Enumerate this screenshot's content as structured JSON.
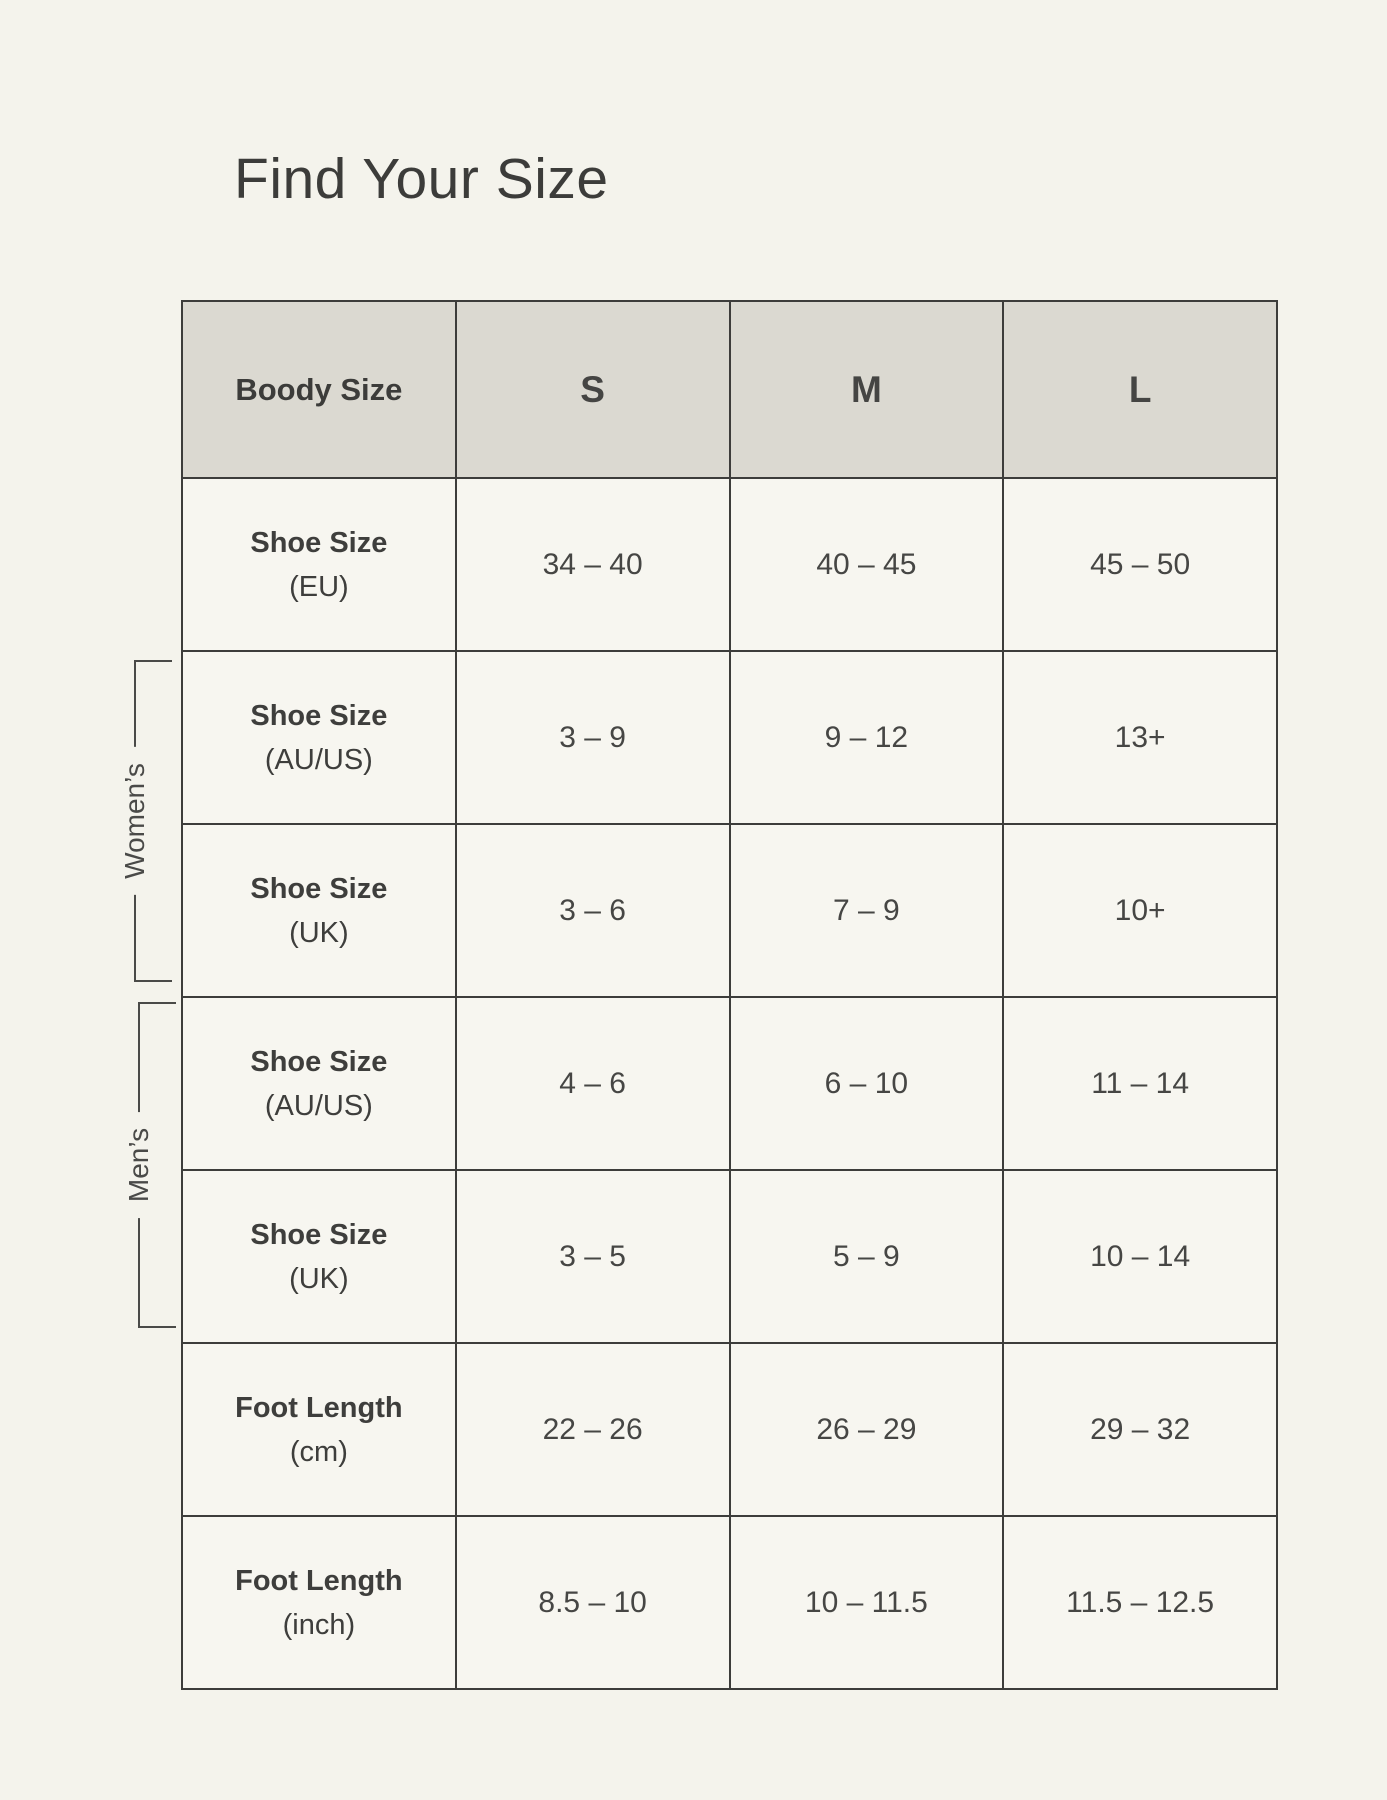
{
  "page": {
    "title": "Find Your Size"
  },
  "colors": {
    "page_background": "#f4f3ec",
    "header_background": "#dbd9d1",
    "cell_background": "#f7f6f0",
    "border": "#3d3d3b",
    "text": "#434341"
  },
  "side_labels": {
    "womens": "Women’s",
    "mens": "Men’s"
  },
  "table": {
    "header": {
      "label": "Boody Size",
      "sizes": [
        "S",
        "M",
        "L"
      ]
    },
    "rows": [
      {
        "label": "Shoe Size",
        "unit": "(EU)",
        "values": [
          "34 – 40",
          "40 – 45",
          "45 – 50"
        ]
      },
      {
        "label": "Shoe Size",
        "unit": "(AU/US)",
        "values": [
          "3 – 9",
          "9 – 12",
          "13+"
        ]
      },
      {
        "label": "Shoe Size",
        "unit": "(UK)",
        "values": [
          "3 – 6",
          "7 – 9",
          "10+"
        ]
      },
      {
        "label": "Shoe Size",
        "unit": "(AU/US)",
        "values": [
          "4 – 6",
          "6 – 10",
          "11 – 14"
        ]
      },
      {
        "label": "Shoe Size",
        "unit": "(UK)",
        "values": [
          "3 – 5",
          "5 – 9",
          "10 – 14"
        ]
      },
      {
        "label": "Foot Length",
        "unit": "(cm)",
        "values": [
          "22 – 26",
          "26 – 29",
          "29 – 32"
        ]
      },
      {
        "label": "Foot Length",
        "unit": "(inch)",
        "values": [
          "8.5 – 10",
          "10 – 11.5",
          "11.5 – 12.5"
        ]
      }
    ]
  }
}
